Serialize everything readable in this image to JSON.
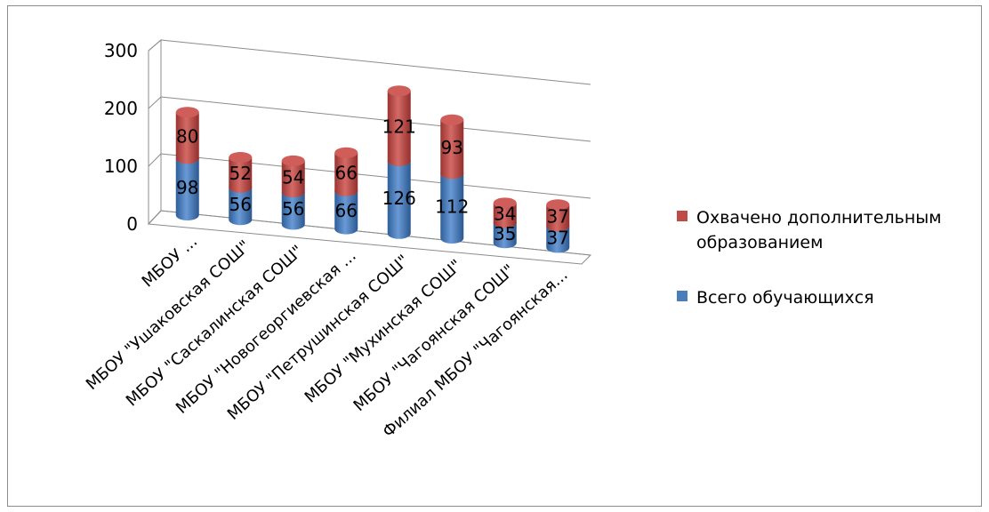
{
  "chart_data": {
    "type": "bar",
    "stacked": true,
    "view": "3d",
    "categories": [
      "МБОУ ...",
      "МБОУ \"Ушаковская СОШ\"",
      "МБОУ \"Саскалинская СОШ\"",
      "МБОУ \"Новогеоргиевская ...",
      "МБОУ \"Петрушинская СОШ\"",
      "МБОУ \"Мухинская СОШ\"",
      "МБОУ \"Чагоянская СОШ\"",
      "Филиал МБОУ \"Чагоянская..."
    ],
    "series": [
      {
        "name": "Всего обучающихся",
        "color": "#4a7ebb",
        "values": [
          98,
          56,
          56,
          66,
          126,
          112,
          35,
          37
        ]
      },
      {
        "name": "Охвачено дополнительным образованием",
        "color": "#be4b48",
        "values": [
          80,
          52,
          54,
          66,
          121,
          93,
          34,
          37
        ]
      }
    ],
    "y_ticks": [
      "0",
      "100",
      "200",
      "300"
    ],
    "ylim": [
      0,
      300
    ],
    "grid": true,
    "legend": {
      "position": "right",
      "entries": [
        {
          "lines": [
            "Охвачено дополнительным",
            "образованием"
          ],
          "color": "#be4b48"
        },
        {
          "lines": [
            "Всего обучающихся"
          ],
          "color": "#4a7ebb"
        }
      ]
    }
  }
}
